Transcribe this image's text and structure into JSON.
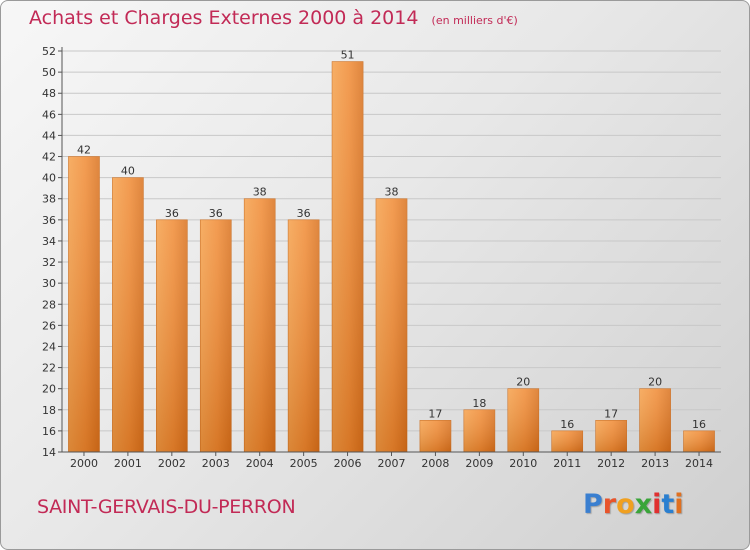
{
  "header": {
    "title": "Achats et Charges Externes 2000 à 2014",
    "unit": "(en milliers d'€)"
  },
  "footer": {
    "commune": "SAINT-GERVAIS-DU-PERRON"
  },
  "logo": {
    "text": "Proxiti",
    "colors": [
      "#3a7fd0",
      "#e8542b",
      "#f0a020",
      "#3aa53a",
      "#e03030",
      "#2a7fd0",
      "#e07020"
    ]
  },
  "colors": {
    "bar_fill": "#f08a33",
    "title": "#c22a56"
  },
  "chart_data": {
    "type": "bar",
    "title": "Achats et Charges Externes 2000 à 2014",
    "categories": [
      "2000",
      "2001",
      "2002",
      "2003",
      "2004",
      "2005",
      "2006",
      "2007",
      "2008",
      "2009",
      "2010",
      "2011",
      "2012",
      "2013",
      "2014"
    ],
    "values": [
      42,
      40,
      36,
      36,
      38,
      36,
      51,
      38,
      17,
      18,
      20,
      16,
      17,
      20,
      16
    ],
    "ylim": [
      14,
      52
    ],
    "yticks": [
      14,
      16,
      18,
      20,
      22,
      24,
      26,
      28,
      30,
      32,
      34,
      36,
      38,
      40,
      42,
      44,
      46,
      48,
      50,
      52
    ],
    "grid": true,
    "data_labels": true
  }
}
